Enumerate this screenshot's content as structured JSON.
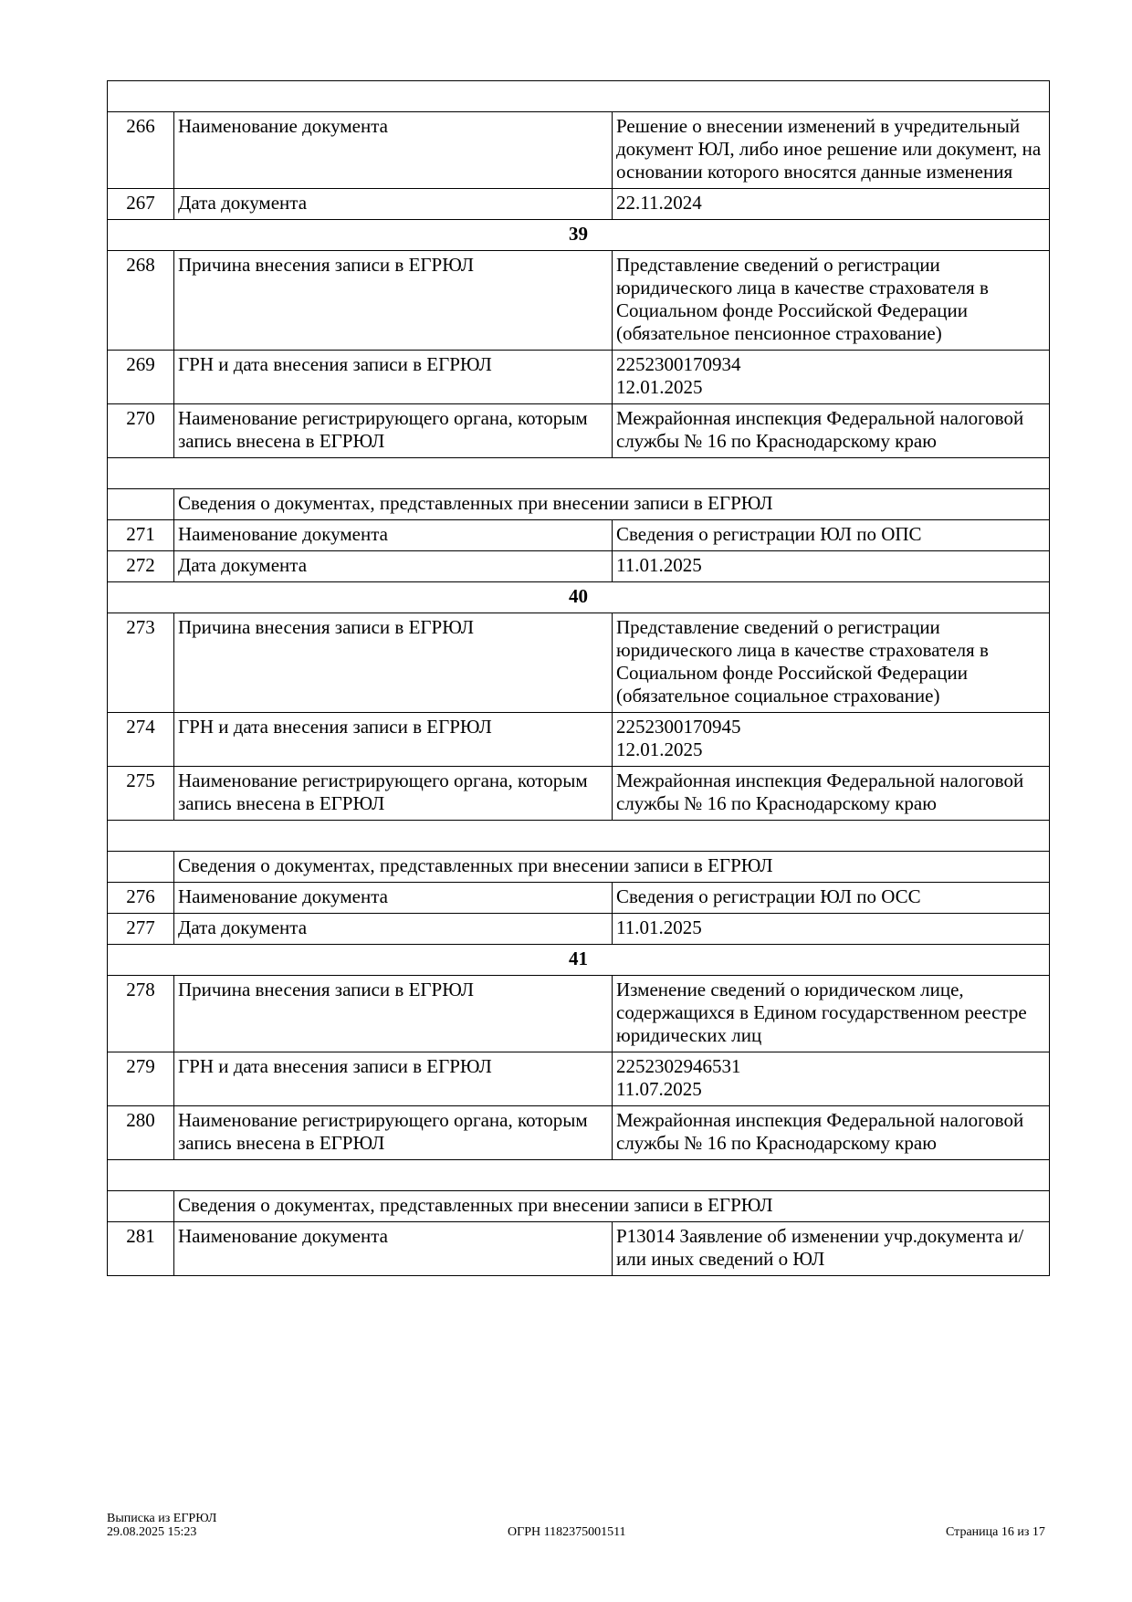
{
  "rows": [
    {
      "type": "empty"
    },
    {
      "type": "row",
      "num": "266",
      "label": "Наименование документа",
      "value": "Решение о внесении изменений в учредительный документ ЮЛ, либо иное решение или документ, на основании которого вносятся данные изменения"
    },
    {
      "type": "row",
      "num": "267",
      "label": "Дата документа",
      "value": "22.11.2024"
    },
    {
      "type": "section",
      "text": "39"
    },
    {
      "type": "row",
      "num": "268",
      "label": "Причина внесения записи в ЕГРЮЛ",
      "value": "Представление сведений о регистрации юридического лица в качестве страхователя в Социальном фонде Российской Федерации (обязательное пенсионное страхование)"
    },
    {
      "type": "row",
      "num": "269",
      "label": "ГРН и дата внесения записи в ЕГРЮЛ",
      "value": "2252300170934\n12.01.2025"
    },
    {
      "type": "row",
      "num": "270",
      "label": "Наименование регистрирующего органа, которым запись внесена в ЕГРЮЛ",
      "value": "Межрайонная инспекция Федеральной налоговой службы № 16 по Краснодарскому краю"
    },
    {
      "type": "empty"
    },
    {
      "type": "subheader",
      "text": "Сведения о документах, представленных при внесении записи в ЕГРЮЛ"
    },
    {
      "type": "row",
      "num": "271",
      "label": "Наименование документа",
      "value": "Сведения о регистрации ЮЛ по ОПС"
    },
    {
      "type": "row",
      "num": "272",
      "label": "Дата документа",
      "value": "11.01.2025"
    },
    {
      "type": "section",
      "text": "40"
    },
    {
      "type": "row",
      "num": "273",
      "label": "Причина внесения записи в ЕГРЮЛ",
      "value": "Представление сведений о регистрации юридического лица в качестве страхователя в Социальном фонде Российской Федерации (обязательное социальное страхование)"
    },
    {
      "type": "row",
      "num": "274",
      "label": "ГРН и дата внесения записи в ЕГРЮЛ",
      "value": "2252300170945\n12.01.2025"
    },
    {
      "type": "row",
      "num": "275",
      "label": "Наименование регистрирующего органа, которым запись внесена в ЕГРЮЛ",
      "value": "Межрайонная инспекция Федеральной налоговой службы № 16 по Краснодарскому краю"
    },
    {
      "type": "empty"
    },
    {
      "type": "subheader",
      "text": "Сведения о документах, представленных при внесении записи в ЕГРЮЛ"
    },
    {
      "type": "row",
      "num": "276",
      "label": "Наименование документа",
      "value": "Сведения о регистрации ЮЛ по ОСС"
    },
    {
      "type": "row",
      "num": "277",
      "label": "Дата документа",
      "value": "11.01.2025"
    },
    {
      "type": "section",
      "text": "41"
    },
    {
      "type": "row",
      "num": "278",
      "label": "Причина внесения записи в ЕГРЮЛ",
      "value": "Изменение сведений о юридическом лице, содержащихся в Едином государственном реестре юридических лиц"
    },
    {
      "type": "row",
      "num": "279",
      "label": "ГРН и дата внесения записи в ЕГРЮЛ",
      "value": "2252302946531\n11.07.2025"
    },
    {
      "type": "row",
      "num": "280",
      "label": "Наименование регистрирующего органа, которым запись внесена в ЕГРЮЛ",
      "value": "Межрайонная инспекция Федеральной налоговой службы № 16 по Краснодарскому краю"
    },
    {
      "type": "empty"
    },
    {
      "type": "subheader",
      "text": "Сведения о документах, представленных при внесении записи в ЕГРЮЛ"
    },
    {
      "type": "row",
      "num": "281",
      "label": "Наименование документа",
      "value": "Р13014 Заявление об изменении учр.документа и/или иных сведений о ЮЛ"
    }
  ],
  "footer": {
    "doc_title": "Выписка из ЕГРЮЛ",
    "datetime": "29.08.2025 15:23",
    "ogrn": "ОГРН 1182375001511",
    "page": "Страница 16 из 17"
  }
}
